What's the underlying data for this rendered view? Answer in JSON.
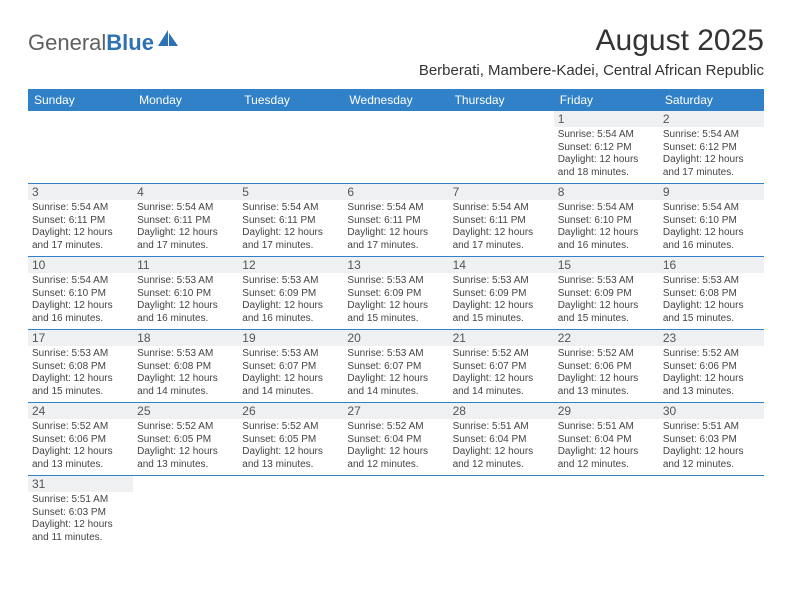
{
  "logo": {
    "text1": "General",
    "text2": "Blue"
  },
  "header": {
    "month_title": "August 2025",
    "subtitle": "Berberati, Mambere-Kadei, Central African Republic"
  },
  "colors": {
    "header_bg": "#3081c7",
    "header_text": "#ffffff",
    "daynum_bg": "#eef0f1",
    "row_border": "#3081c7",
    "logo_blue": "#2d72b5",
    "logo_gray": "#606060"
  },
  "day_headers": [
    "Sunday",
    "Monday",
    "Tuesday",
    "Wednesday",
    "Thursday",
    "Friday",
    "Saturday"
  ],
  "weeks": [
    [
      {
        "blank": true
      },
      {
        "blank": true
      },
      {
        "blank": true
      },
      {
        "blank": true
      },
      {
        "blank": true
      },
      {
        "n": "1",
        "sunrise": "Sunrise: 5:54 AM",
        "sunset": "Sunset: 6:12 PM",
        "day1": "Daylight: 12 hours",
        "day2": "and 18 minutes."
      },
      {
        "n": "2",
        "sunrise": "Sunrise: 5:54 AM",
        "sunset": "Sunset: 6:12 PM",
        "day1": "Daylight: 12 hours",
        "day2": "and 17 minutes."
      }
    ],
    [
      {
        "n": "3",
        "sunrise": "Sunrise: 5:54 AM",
        "sunset": "Sunset: 6:11 PM",
        "day1": "Daylight: 12 hours",
        "day2": "and 17 minutes."
      },
      {
        "n": "4",
        "sunrise": "Sunrise: 5:54 AM",
        "sunset": "Sunset: 6:11 PM",
        "day1": "Daylight: 12 hours",
        "day2": "and 17 minutes."
      },
      {
        "n": "5",
        "sunrise": "Sunrise: 5:54 AM",
        "sunset": "Sunset: 6:11 PM",
        "day1": "Daylight: 12 hours",
        "day2": "and 17 minutes."
      },
      {
        "n": "6",
        "sunrise": "Sunrise: 5:54 AM",
        "sunset": "Sunset: 6:11 PM",
        "day1": "Daylight: 12 hours",
        "day2": "and 17 minutes."
      },
      {
        "n": "7",
        "sunrise": "Sunrise: 5:54 AM",
        "sunset": "Sunset: 6:11 PM",
        "day1": "Daylight: 12 hours",
        "day2": "and 17 minutes."
      },
      {
        "n": "8",
        "sunrise": "Sunrise: 5:54 AM",
        "sunset": "Sunset: 6:10 PM",
        "day1": "Daylight: 12 hours",
        "day2": "and 16 minutes."
      },
      {
        "n": "9",
        "sunrise": "Sunrise: 5:54 AM",
        "sunset": "Sunset: 6:10 PM",
        "day1": "Daylight: 12 hours",
        "day2": "and 16 minutes."
      }
    ],
    [
      {
        "n": "10",
        "sunrise": "Sunrise: 5:54 AM",
        "sunset": "Sunset: 6:10 PM",
        "day1": "Daylight: 12 hours",
        "day2": "and 16 minutes."
      },
      {
        "n": "11",
        "sunrise": "Sunrise: 5:53 AM",
        "sunset": "Sunset: 6:10 PM",
        "day1": "Daylight: 12 hours",
        "day2": "and 16 minutes."
      },
      {
        "n": "12",
        "sunrise": "Sunrise: 5:53 AM",
        "sunset": "Sunset: 6:09 PM",
        "day1": "Daylight: 12 hours",
        "day2": "and 16 minutes."
      },
      {
        "n": "13",
        "sunrise": "Sunrise: 5:53 AM",
        "sunset": "Sunset: 6:09 PM",
        "day1": "Daylight: 12 hours",
        "day2": "and 15 minutes."
      },
      {
        "n": "14",
        "sunrise": "Sunrise: 5:53 AM",
        "sunset": "Sunset: 6:09 PM",
        "day1": "Daylight: 12 hours",
        "day2": "and 15 minutes."
      },
      {
        "n": "15",
        "sunrise": "Sunrise: 5:53 AM",
        "sunset": "Sunset: 6:09 PM",
        "day1": "Daylight: 12 hours",
        "day2": "and 15 minutes."
      },
      {
        "n": "16",
        "sunrise": "Sunrise: 5:53 AM",
        "sunset": "Sunset: 6:08 PM",
        "day1": "Daylight: 12 hours",
        "day2": "and 15 minutes."
      }
    ],
    [
      {
        "n": "17",
        "sunrise": "Sunrise: 5:53 AM",
        "sunset": "Sunset: 6:08 PM",
        "day1": "Daylight: 12 hours",
        "day2": "and 15 minutes."
      },
      {
        "n": "18",
        "sunrise": "Sunrise: 5:53 AM",
        "sunset": "Sunset: 6:08 PM",
        "day1": "Daylight: 12 hours",
        "day2": "and 14 minutes."
      },
      {
        "n": "19",
        "sunrise": "Sunrise: 5:53 AM",
        "sunset": "Sunset: 6:07 PM",
        "day1": "Daylight: 12 hours",
        "day2": "and 14 minutes."
      },
      {
        "n": "20",
        "sunrise": "Sunrise: 5:53 AM",
        "sunset": "Sunset: 6:07 PM",
        "day1": "Daylight: 12 hours",
        "day2": "and 14 minutes."
      },
      {
        "n": "21",
        "sunrise": "Sunrise: 5:52 AM",
        "sunset": "Sunset: 6:07 PM",
        "day1": "Daylight: 12 hours",
        "day2": "and 14 minutes."
      },
      {
        "n": "22",
        "sunrise": "Sunrise: 5:52 AM",
        "sunset": "Sunset: 6:06 PM",
        "day1": "Daylight: 12 hours",
        "day2": "and 13 minutes."
      },
      {
        "n": "23",
        "sunrise": "Sunrise: 5:52 AM",
        "sunset": "Sunset: 6:06 PM",
        "day1": "Daylight: 12 hours",
        "day2": "and 13 minutes."
      }
    ],
    [
      {
        "n": "24",
        "sunrise": "Sunrise: 5:52 AM",
        "sunset": "Sunset: 6:06 PM",
        "day1": "Daylight: 12 hours",
        "day2": "and 13 minutes."
      },
      {
        "n": "25",
        "sunrise": "Sunrise: 5:52 AM",
        "sunset": "Sunset: 6:05 PM",
        "day1": "Daylight: 12 hours",
        "day2": "and 13 minutes."
      },
      {
        "n": "26",
        "sunrise": "Sunrise: 5:52 AM",
        "sunset": "Sunset: 6:05 PM",
        "day1": "Daylight: 12 hours",
        "day2": "and 13 minutes."
      },
      {
        "n": "27",
        "sunrise": "Sunrise: 5:52 AM",
        "sunset": "Sunset: 6:04 PM",
        "day1": "Daylight: 12 hours",
        "day2": "and 12 minutes."
      },
      {
        "n": "28",
        "sunrise": "Sunrise: 5:51 AM",
        "sunset": "Sunset: 6:04 PM",
        "day1": "Daylight: 12 hours",
        "day2": "and 12 minutes."
      },
      {
        "n": "29",
        "sunrise": "Sunrise: 5:51 AM",
        "sunset": "Sunset: 6:04 PM",
        "day1": "Daylight: 12 hours",
        "day2": "and 12 minutes."
      },
      {
        "n": "30",
        "sunrise": "Sunrise: 5:51 AM",
        "sunset": "Sunset: 6:03 PM",
        "day1": "Daylight: 12 hours",
        "day2": "and 12 minutes."
      }
    ],
    [
      {
        "n": "31",
        "sunrise": "Sunrise: 5:51 AM",
        "sunset": "Sunset: 6:03 PM",
        "day1": "Daylight: 12 hours",
        "day2": "and 11 minutes."
      },
      {
        "blank": true
      },
      {
        "blank": true
      },
      {
        "blank": true
      },
      {
        "blank": true
      },
      {
        "blank": true
      },
      {
        "blank": true
      }
    ]
  ]
}
